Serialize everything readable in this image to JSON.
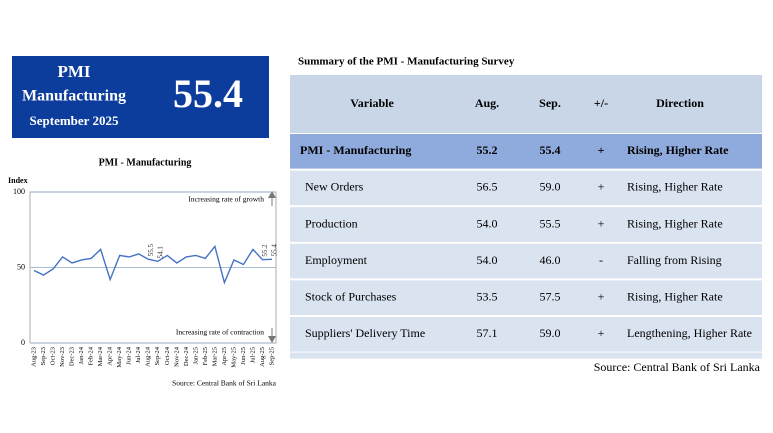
{
  "header": {
    "title": "PMI",
    "subtitle": "Manufacturing",
    "period": "September 2025",
    "value": "55.4"
  },
  "chart_data": {
    "type": "line",
    "title": "PMI - Manufacturing",
    "y_label": "Index",
    "categories": [
      "Aug-23",
      "Sep-23",
      "Oct-23",
      "Nov-23",
      "Dec-23",
      "Jan-24",
      "Feb-24",
      "Mar-24",
      "Apr-24",
      "May-24",
      "Jun-24",
      "Jul-24",
      "Aug-24",
      "Sep-24",
      "Oct-24",
      "Nov-24",
      "Dec-24",
      "Jan-25",
      "Feb-25",
      "Mar-25",
      "Apr-25",
      "May-25",
      "Jun-25",
      "Jul-25",
      "Aug-25",
      "Sep-25"
    ],
    "series": [
      {
        "name": "PMI - Manufacturing",
        "color": "#4472c4",
        "values": [
          48,
          45,
          49,
          57,
          53,
          55,
          56,
          62,
          42,
          58,
          57,
          59,
          55.5,
          54.1,
          58,
          53,
          57,
          58,
          56,
          64,
          40,
          55,
          52,
          62,
          55.2,
          55.4
        ],
        "value_labels": [
          null,
          null,
          null,
          null,
          null,
          null,
          null,
          null,
          null,
          null,
          null,
          null,
          "55.5",
          "54.1",
          null,
          null,
          null,
          null,
          null,
          null,
          null,
          null,
          null,
          null,
          "55.2",
          "55.4"
        ]
      }
    ],
    "ylim": [
      0,
      100
    ],
    "yticks": [
      0,
      50,
      100
    ],
    "grid": true,
    "annotations": [
      "Increasing rate of growth",
      "Increasing rate of contraction"
    ],
    "source": "Source: Central Bank of Sri Lanka"
  },
  "table": {
    "title": "Summary of the PMI - Manufacturing Survey",
    "columns": [
      "Variable",
      "Aug.",
      "Sep.",
      "+/-",
      "Direction"
    ],
    "rows": [
      [
        "PMI - Manufacturing",
        "55.2",
        "55.4",
        "+",
        "Rising, Higher Rate"
      ],
      [
        "New Orders",
        "56.5",
        "59.0",
        "+",
        "Rising, Higher Rate"
      ],
      [
        "Production",
        "54.0",
        "55.5",
        "+",
        "Rising, Higher Rate"
      ],
      [
        "Employment",
        "54.0",
        "46.0",
        "-",
        "Falling from Rising"
      ],
      [
        "Stock of Purchases",
        "53.5",
        "57.5",
        "+",
        "Rising, Higher Rate"
      ],
      [
        "Suppliers' Delivery Time",
        "57.1",
        "59.0",
        "+",
        "Lengthening, Higher Rate"
      ]
    ],
    "source": "Source: Central Bank of Sri Lanka"
  }
}
